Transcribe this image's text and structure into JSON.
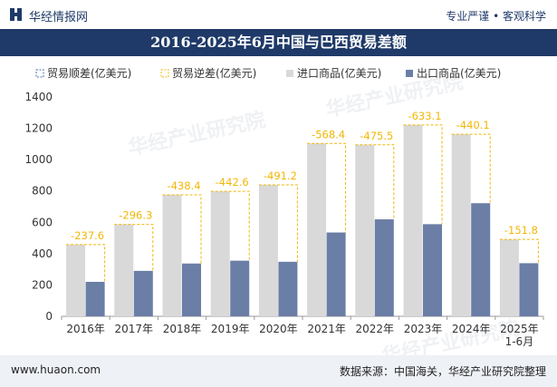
{
  "header": {
    "brand": "华经情报网",
    "tagline": "专业严谨 • 客观科学",
    "title": "2016-2025年6月中国与巴西贸易差额"
  },
  "footer": {
    "site": "www.huaon.com",
    "source": "数据来源：中国海关，华经产业研究院整理"
  },
  "watermark": "华经产业研究院",
  "colors": {
    "header_bg": "#1f3a68",
    "import": "#d9d9d9",
    "export": "#6b7ea6",
    "surplus": "#4a6fa5",
    "deficit": "#f2b705",
    "footer_bg": "#eef1f6"
  },
  "chart_data": {
    "type": "bar",
    "categories": [
      "2016年",
      "2017年",
      "2018年",
      "2019年",
      "2020年",
      "2021年",
      "2022年",
      "2023年",
      "2024年",
      "2025年\n1-6月"
    ],
    "series": [
      {
        "name": "贸易顺差(亿美元)",
        "values": [
          null,
          null,
          null,
          null,
          null,
          null,
          null,
          null,
          null,
          null
        ]
      },
      {
        "name": "贸易逆差(亿美元)",
        "values": [
          -237.6,
          -296.3,
          -438.4,
          -442.6,
          -491.2,
          -568.4,
          -475.5,
          -633.1,
          -440.1,
          -151.8
        ]
      },
      {
        "name": "进口商品(亿美元)",
        "values": [
          457.6,
          586.3,
          775.4,
          797.6,
          839.2,
          1103.4,
          1094.5,
          1221.1,
          1162.1,
          490.8
        ]
      },
      {
        "name": "出口商品(亿美元)",
        "values": [
          220.0,
          290.0,
          337.0,
          355.0,
          348.0,
          535.0,
          619.0,
          588.0,
          722.0,
          339.0
        ]
      }
    ],
    "ylim": [
      0,
      1400
    ],
    "yticks": [
      0,
      200,
      400,
      600,
      800,
      1000,
      1200,
      1400
    ],
    "legend_position": "top",
    "grid": false
  }
}
